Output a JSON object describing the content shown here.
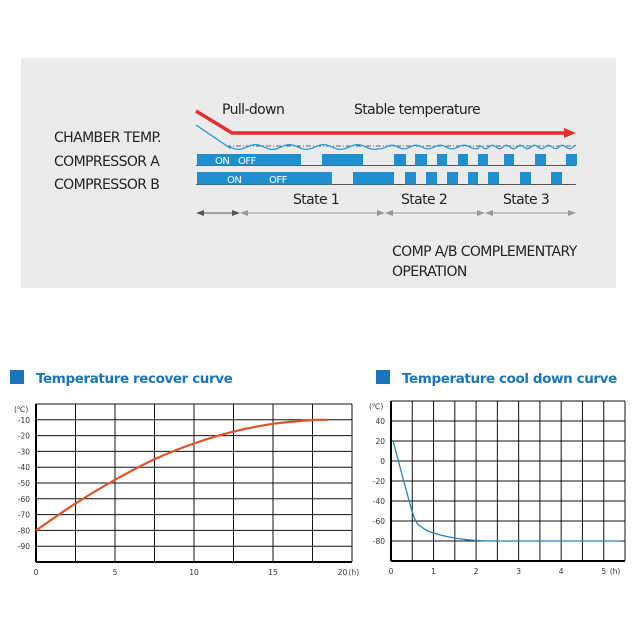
{
  "diagram": {
    "row_labels": {
      "chamber": "CHAMBER TEMP.",
      "comp_a": "COMPRESSOR A",
      "comp_b": "COMPRESSOR B"
    },
    "phase_labels": {
      "pulldown": "Pull-down",
      "stable": "Stable temperature"
    },
    "on_label": "ON",
    "off_label": "OFF",
    "states": [
      "State 1",
      "State 2",
      "State 3"
    ],
    "note_line1": "COMP A/B COMPLEMENTARY",
    "note_line2": "OPERATION",
    "colors": {
      "background": "#ebebeb",
      "bar": "#1e8fcf",
      "arrow": "#e03030",
      "temp_line": "#2a9ad6"
    }
  },
  "chart_data": [
    {
      "type": "line",
      "title": "Temperature recover curve",
      "ylabel": "(℃)",
      "xlabel": "(h)",
      "xlim": [
        0,
        20
      ],
      "ylim": [
        -100,
        0
      ],
      "x_ticks": [
        "0",
        "5",
        "10",
        "15",
        "20"
      ],
      "y_ticks": [
        "-10",
        "-20",
        "-30",
        "-40",
        "-50",
        "-60",
        "-70",
        "-80",
        "-90"
      ],
      "grid": true,
      "color": "#e0532a",
      "x": [
        0,
        2.5,
        5,
        7.5,
        10,
        12.5,
        15,
        17.5,
        18.5
      ],
      "y": [
        -80,
        -63,
        -48,
        -35,
        -25,
        -17.5,
        -12.5,
        -10.2,
        -10
      ]
    },
    {
      "type": "line",
      "title": "Temperature cool down curve",
      "ylabel": "(℃)",
      "xlabel": "(h)",
      "xlim": [
        0,
        5.5
      ],
      "ylim": [
        -100,
        60
      ],
      "x_ticks": [
        "0",
        "1",
        "2",
        "3",
        "4",
        "5"
      ],
      "y_ticks": [
        "40",
        "20",
        "0",
        "-20",
        "-40",
        "-60",
        "-80"
      ],
      "grid": true,
      "color": "#2a7fc0",
      "x": [
        0.05,
        0.3,
        0.55,
        0.75,
        1,
        1.5,
        2,
        2.5,
        3,
        4,
        5,
        5.4
      ],
      "y": [
        20,
        -20,
        -57,
        -67,
        -72,
        -77,
        -79.5,
        -80,
        -80,
        -80,
        -80,
        -80
      ]
    }
  ]
}
